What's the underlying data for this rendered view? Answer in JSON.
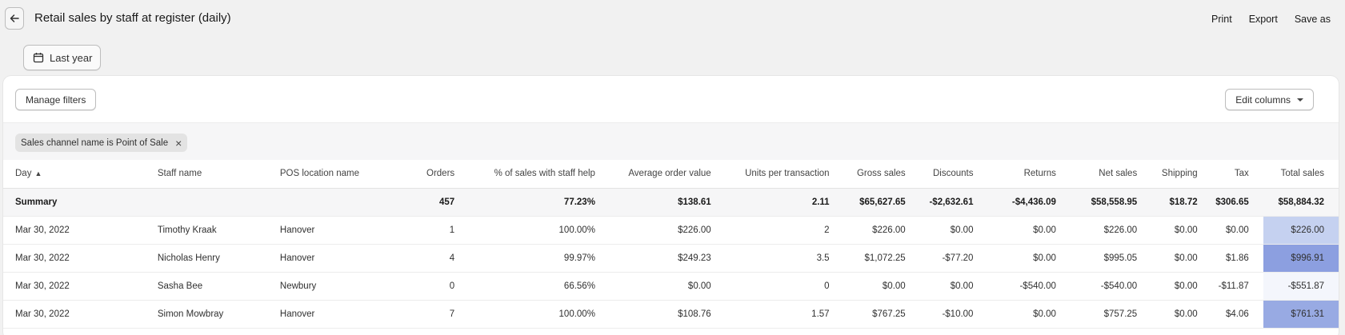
{
  "header": {
    "title": "Retail sales by staff at register (daily)",
    "actions": {
      "print": "Print",
      "export": "Export",
      "save_as": "Save as"
    }
  },
  "date_range": {
    "label": "Last year"
  },
  "toolbar": {
    "manage_filters": "Manage filters",
    "edit_columns": "Edit columns"
  },
  "filter_chip": {
    "label": "Sales channel name is Point of Sale",
    "remove": "×"
  },
  "table": {
    "columns": [
      "Day",
      "Staff name",
      "POS location name",
      "Orders",
      "% of sales with staff help",
      "Average order value",
      "Units per transaction",
      "Gross sales",
      "Discounts",
      "Returns",
      "Net sales",
      "Shipping",
      "Tax",
      "Total sales"
    ],
    "summary": [
      "Summary",
      "",
      "",
      "457",
      "77.23%",
      "$138.61",
      "2.11",
      "$65,627.65",
      "-$2,632.61",
      "-$4,436.09",
      "$58,558.95",
      "$18.72",
      "$306.65",
      "$58,884.32"
    ],
    "rows": [
      [
        "Mar 30, 2022",
        "Timothy Kraak",
        "Hanover",
        "1",
        "100.00%",
        "$226.00",
        "2",
        "$226.00",
        "$0.00",
        "$0.00",
        "$226.00",
        "$0.00",
        "$0.00",
        "$226.00"
      ],
      [
        "Mar 30, 2022",
        "Nicholas Henry",
        "Hanover",
        "4",
        "99.97%",
        "$249.23",
        "3.5",
        "$1,072.25",
        "-$77.20",
        "$0.00",
        "$995.05",
        "$0.00",
        "$1.86",
        "$996.91"
      ],
      [
        "Mar 30, 2022",
        "Sasha Bee",
        "Newbury",
        "0",
        "66.56%",
        "$0.00",
        "0",
        "$0.00",
        "$0.00",
        "-$540.00",
        "-$540.00",
        "$0.00",
        "-$11.87",
        "-$551.87"
      ],
      [
        "Mar 30, 2022",
        "Simon Mowbray",
        "Hanover",
        "7",
        "100.00%",
        "$108.76",
        "1.57",
        "$767.25",
        "-$10.00",
        "$0.00",
        "$757.25",
        "$0.00",
        "$4.06",
        "$761.31"
      ]
    ],
    "total_sales_heat_colors": [
      "#c5d1f0",
      "#8c9fe0",
      "#f4f6fc",
      "#98aae3"
    ]
  }
}
